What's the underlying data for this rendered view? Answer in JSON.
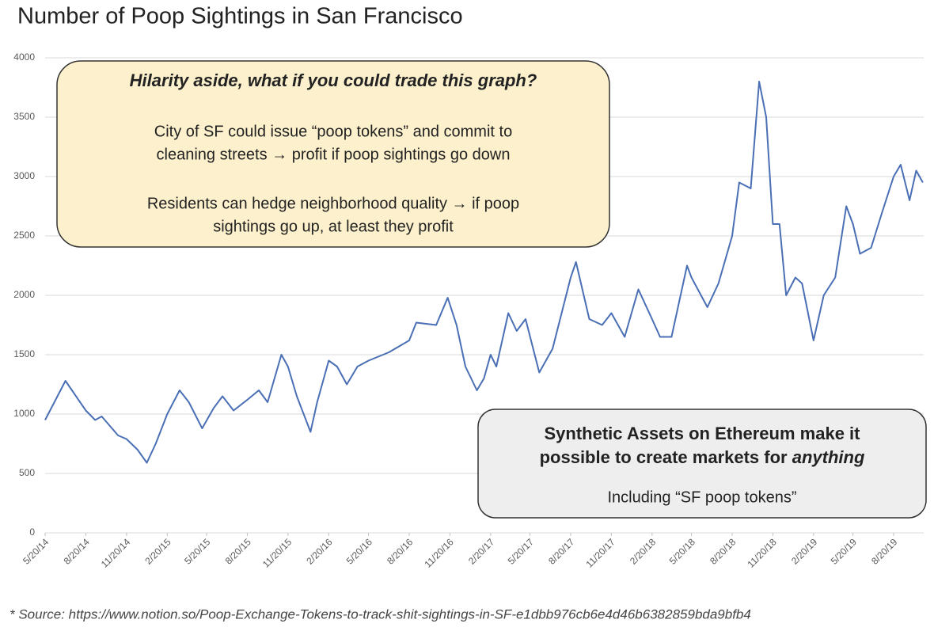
{
  "chart_data": {
    "type": "line",
    "title": "Number of Poop Sightings in San Francisco",
    "x": [
      "2014-05-20",
      "2014-07-05",
      "2014-08-20",
      "2014-09-10",
      "2014-09-25",
      "2014-11-01",
      "2014-11-20",
      "2014-12-15",
      "2015-01-05",
      "2015-01-25",
      "2015-02-20",
      "2015-03-20",
      "2015-04-10",
      "2015-05-10",
      "2015-06-05",
      "2015-06-25",
      "2015-07-20",
      "2015-08-20",
      "2015-09-15",
      "2015-10-05",
      "2015-11-05",
      "2015-11-20",
      "2015-12-10",
      "2016-01-10",
      "2016-01-25",
      "2016-02-20",
      "2016-03-10",
      "2016-04-01",
      "2016-04-25",
      "2016-05-20",
      "2016-07-05",
      "2016-08-20",
      "2016-09-05",
      "2016-10-20",
      "2016-11-15",
      "2016-12-05",
      "2016-12-25",
      "2017-01-20",
      "2017-02-05",
      "2017-02-20",
      "2017-03-05",
      "2017-04-01",
      "2017-04-20",
      "2017-05-10",
      "2017-06-10",
      "2017-07-10",
      "2017-08-20",
      "2017-09-01",
      "2017-10-01",
      "2017-10-30",
      "2017-11-20",
      "2017-12-20",
      "2018-01-20",
      "2018-02-20",
      "2018-03-10",
      "2018-04-05",
      "2018-05-10",
      "2018-05-20",
      "2018-06-25",
      "2018-07-20",
      "2018-08-20",
      "2018-09-05",
      "2018-10-01",
      "2018-10-20",
      "2018-11-05",
      "2018-11-20",
      "2018-12-05",
      "2018-12-20",
      "2019-01-10",
      "2019-01-25",
      "2019-02-20",
      "2019-03-15",
      "2019-04-10",
      "2019-05-05",
      "2019-05-20",
      "2019-06-05",
      "2019-06-30",
      "2019-07-25",
      "2019-08-20",
      "2019-09-05",
      "2019-09-25",
      "2019-10-10",
      "2019-10-25"
    ],
    "values": [
      950,
      1280,
      1030,
      950,
      980,
      820,
      790,
      700,
      590,
      750,
      1000,
      1200,
      1100,
      880,
      1050,
      1150,
      1030,
      1120,
      1200,
      1100,
      1500,
      1400,
      1150,
      850,
      1100,
      1450,
      1400,
      1250,
      1400,
      1450,
      1520,
      1620,
      1770,
      1750,
      1980,
      1750,
      1400,
      1200,
      1300,
      1500,
      1400,
      1850,
      1700,
      1800,
      1350,
      1550,
      2150,
      2280,
      1800,
      1750,
      1850,
      1650,
      2050,
      1800,
      1650,
      1650,
      2250,
      2150,
      1900,
      2100,
      2500,
      2950,
      2900,
      3800,
      3500,
      2600,
      2600,
      2000,
      2150,
      2100,
      1620,
      2000,
      2150,
      2750,
      2600,
      2350,
      2400,
      2700,
      3000,
      3100,
      2800,
      3050,
      2950
    ],
    "color": "#4a6fb5",
    "xlim": [
      "2014-05-20",
      "2019-10-27"
    ],
    "xticks": [
      {
        "value": "2014-05-20",
        "label": "5/20/14"
      },
      {
        "value": "2014-08-20",
        "label": "8/20/14"
      },
      {
        "value": "2014-11-20",
        "label": "11/20/14"
      },
      {
        "value": "2015-02-20",
        "label": "2/20/15"
      },
      {
        "value": "2015-05-20",
        "label": "5/20/15"
      },
      {
        "value": "2015-08-20",
        "label": "8/20/15"
      },
      {
        "value": "2015-11-20",
        "label": "11/20/15"
      },
      {
        "value": "2016-02-20",
        "label": "2/20/16"
      },
      {
        "value": "2016-05-20",
        "label": "5/20/16"
      },
      {
        "value": "2016-08-20",
        "label": "8/20/16"
      },
      {
        "value": "2016-11-20",
        "label": "11/20/16"
      },
      {
        "value": "2017-02-20",
        "label": "2/20/17"
      },
      {
        "value": "2017-05-20",
        "label": "5/20/17"
      },
      {
        "value": "2017-08-20",
        "label": "8/20/17"
      },
      {
        "value": "2017-11-20",
        "label": "11/20/17"
      },
      {
        "value": "2018-02-20",
        "label": "2/20/18"
      },
      {
        "value": "2018-05-20",
        "label": "5/20/18"
      },
      {
        "value": "2018-08-20",
        "label": "8/20/18"
      },
      {
        "value": "2018-11-20",
        "label": "11/20/18"
      },
      {
        "value": "2019-02-20",
        "label": "2/20/19"
      },
      {
        "value": "2019-05-20",
        "label": "5/20/19"
      },
      {
        "value": "2019-08-20",
        "label": "8/20/19"
      }
    ],
    "ylim": [
      0,
      4000
    ],
    "yticks": [
      0,
      500,
      1000,
      1500,
      2000,
      2500,
      3000,
      3500,
      4000
    ],
    "grid": true,
    "annotations": [
      {
        "title": "Hilarity aside, what if you could trade this graph?",
        "lines": [
          "City of SF could issue “poop tokens” and commit to",
          "cleaning streets → profit if poop sightings go down",
          "Residents can hedge neighborhood quality → if poop",
          "sightings go up, at least they profit"
        ]
      },
      {
        "title": "Synthetic Assets on Ethereum make it",
        "title2": [
          "possible to create markets for ",
          "anything"
        ],
        "lines": [
          "Including “SF poop tokens”"
        ]
      }
    ],
    "source": "* Source: https://www.notion.so/Poop-Exchange-Tokens-to-track-shit-sightings-in-SF-e1dbb976cb6e4d46b6382859bda9bfb4"
  }
}
